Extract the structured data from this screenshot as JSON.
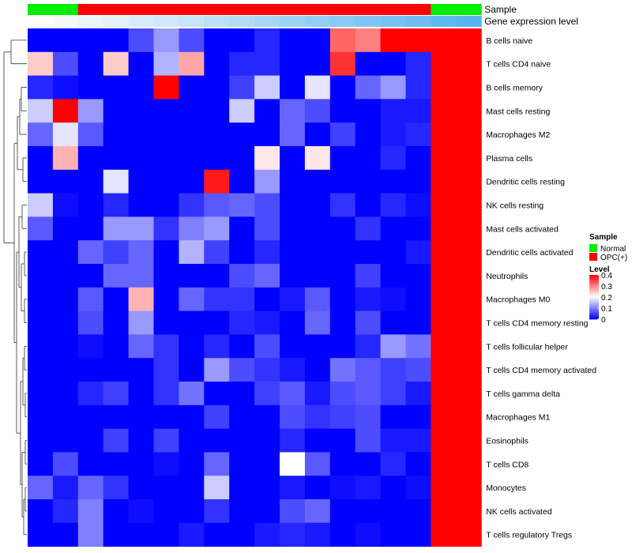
{
  "chart_data": {
    "type": "heatmap",
    "annotation_tracks": [
      {
        "label": "Sample",
        "values": [
          "Normal",
          "Normal",
          "OPC(+)",
          "OPC(+)",
          "OPC(+)",
          "OPC(+)",
          "OPC(+)",
          "OPC(+)",
          "OPC(+)",
          "OPC(+)",
          "OPC(+)",
          "OPC(+)",
          "OPC(+)",
          "OPC(+)",
          "OPC(+)",
          "OPC(+)",
          "Normal",
          "Normal"
        ]
      },
      {
        "label": "Gene expression level",
        "values": [
          0.0,
          0.06,
          0.12,
          0.18,
          0.24,
          0.29,
          0.35,
          0.41,
          0.47,
          0.53,
          0.59,
          0.65,
          0.71,
          0.76,
          0.82,
          0.88,
          0.94,
          1.0
        ]
      }
    ],
    "rows": [
      "B cells naive",
      "T cells CD4 naive",
      "B cells memory",
      "Mast cells resting",
      "Macrophages M2",
      "Plasma cells",
      "Dendritic cells resting",
      "NK cells resting",
      "Mast cells activated",
      "Dendritic cells activated",
      "Neutrophils",
      "Macrophages M0",
      "T cells CD4 memory resting",
      "T cells follicular helper",
      "T cells CD4 memory activated",
      "T cells gamma delta",
      "Macrophages M1",
      "Eosinophils",
      "T cells CD8",
      "Monocytes",
      "NK cells activated",
      "T cells regulatory  Tregs"
    ],
    "values": [
      [
        0,
        0,
        0,
        0,
        0.06,
        0.12,
        0.06,
        0,
        0,
        0.03,
        0,
        0,
        0.32,
        0.3,
        0.4,
        0.4,
        0.4,
        0.4
      ],
      [
        0.24,
        0.06,
        0,
        0.24,
        0,
        0.14,
        0.27,
        0,
        0.03,
        0.03,
        0,
        0,
        0.36,
        0,
        0,
        0.03,
        0.4,
        0.4
      ],
      [
        0.03,
        0.01,
        0,
        0,
        0,
        0.4,
        0,
        0,
        0.05,
        0.16,
        0,
        0.18,
        0,
        0.08,
        0.12,
        0.03,
        0.4,
        0.4
      ],
      [
        0.16,
        0.4,
        0.12,
        0,
        0,
        0,
        0,
        0,
        0.16,
        0,
        0.08,
        0.06,
        0,
        0,
        0.02,
        0.02,
        0.4,
        0.4
      ],
      [
        0.08,
        0.18,
        0.07,
        0,
        0,
        0,
        0,
        0,
        0,
        0,
        0.08,
        0,
        0.05,
        0,
        0.02,
        0.03,
        0.4,
        0.4
      ],
      [
        0,
        0.26,
        0,
        0,
        0,
        0,
        0,
        0,
        0,
        0.22,
        0,
        0.22,
        0,
        0,
        0.03,
        0,
        0.4,
        0.4
      ],
      [
        0,
        0,
        0,
        0.18,
        0,
        0,
        0,
        0.38,
        0,
        0.12,
        0,
        0,
        0,
        0,
        0,
        0,
        0.4,
        0.4
      ],
      [
        0.16,
        0.01,
        0,
        0.03,
        0,
        0,
        0.04,
        0.07,
        0.08,
        0.06,
        0,
        0,
        0.04,
        0,
        0.03,
        0.01,
        0.4,
        0.4
      ],
      [
        0.07,
        0,
        0,
        0.12,
        0.12,
        0.04,
        0.1,
        0.12,
        0,
        0.06,
        0,
        0,
        0,
        0.04,
        0,
        0,
        0.4,
        0.4
      ],
      [
        0,
        0,
        0.08,
        0.05,
        0.08,
        0,
        0.14,
        0.05,
        0,
        0.03,
        0,
        0,
        0,
        0,
        0,
        0.02,
        0.4,
        0.4
      ],
      [
        0,
        0,
        0,
        0.08,
        0.08,
        0,
        0,
        0,
        0.06,
        0.08,
        0,
        0,
        0,
        0.05,
        0,
        0,
        0.4,
        0.4
      ],
      [
        0,
        0,
        0.07,
        0,
        0.26,
        0,
        0.08,
        0.04,
        0.04,
        0,
        0.02,
        0.07,
        0,
        0.02,
        0.01,
        0,
        0.4,
        0.4
      ],
      [
        0,
        0,
        0.06,
        0,
        0.12,
        0,
        0,
        0,
        0.03,
        0.02,
        0,
        0.08,
        0,
        0.06,
        0,
        0,
        0.4,
        0.4
      ],
      [
        0,
        0,
        0.01,
        0,
        0.08,
        0.04,
        0,
        0.03,
        0,
        0.06,
        0,
        0,
        0,
        0.03,
        0.12,
        0.09,
        0.4,
        0.4
      ],
      [
        0,
        0,
        0,
        0,
        0,
        0.04,
        0,
        0.12,
        0.06,
        0.04,
        0.02,
        0,
        0.09,
        0.07,
        0.05,
        0.06,
        0.4,
        0.4
      ],
      [
        0,
        0,
        0.03,
        0.05,
        0,
        0.04,
        0.09,
        0,
        0,
        0.05,
        0.07,
        0.02,
        0.06,
        0.07,
        0.05,
        0.02,
        0.4,
        0.4
      ],
      [
        0,
        0,
        0,
        0,
        0,
        0,
        0,
        0.05,
        0,
        0,
        0.06,
        0.04,
        0.05,
        0.06,
        0,
        0,
        0.4,
        0.4
      ],
      [
        0,
        0,
        0,
        0.05,
        0,
        0.05,
        0,
        0,
        0,
        0,
        0.03,
        0,
        0,
        0.06,
        0.02,
        0.02,
        0.4,
        0.4
      ],
      [
        0,
        0.06,
        0,
        0,
        0,
        0.01,
        0,
        0.08,
        0,
        0,
        0.2,
        0.07,
        0,
        0,
        0.03,
        0,
        0.4,
        0.4
      ],
      [
        0.08,
        0.02,
        0.08,
        0.04,
        0,
        0,
        0,
        0.16,
        0,
        0,
        0.02,
        0,
        0.01,
        0.02,
        0,
        0.01,
        0.4,
        0.4
      ],
      [
        0,
        0.03,
        0.1,
        0,
        0.01,
        0,
        0,
        0.04,
        0,
        0,
        0.06,
        0.08,
        0,
        0,
        0,
        0,
        0.4,
        0.4
      ],
      [
        0,
        0,
        0.1,
        0,
        0,
        0,
        0.02,
        0,
        0,
        0.02,
        0.03,
        0.02,
        0,
        0.01,
        0,
        0,
        0.4,
        0.4
      ]
    ],
    "color_scale": {
      "min": 0,
      "max": 0.4,
      "colors": [
        "#0000ff",
        "#ffffff",
        "#ff0000"
      ],
      "ticks": [
        "0.4",
        "0.3",
        "0.2",
        "0.1",
        "0"
      ]
    },
    "legend": {
      "sample_title": "Sample",
      "sample_items": [
        {
          "label": "Normal",
          "color": "#00ee00"
        },
        {
          "label": "OPC(+)",
          "color": "#ff0000"
        }
      ],
      "level_title": "Level"
    },
    "dendrogram": "rows, left side"
  }
}
